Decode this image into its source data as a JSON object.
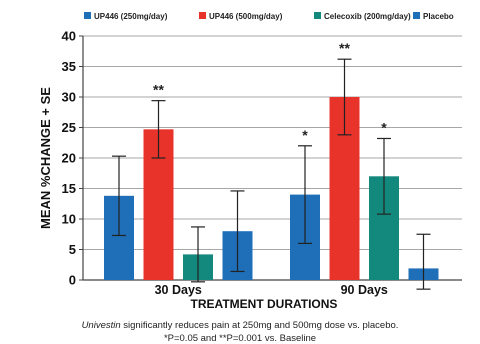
{
  "chart_data": {
    "type": "bar",
    "categories": [
      "30 Days",
      "90 Days"
    ],
    "series": [
      {
        "name": "UP446 (250mg/day)",
        "color": "#1f6fb8",
        "values": [
          13.8,
          14.0
        ],
        "errors": [
          6.5,
          8.0
        ],
        "sig": [
          "",
          "*"
        ]
      },
      {
        "name": "UP446 (500mg/day)",
        "color": "#e8332b",
        "values": [
          24.7,
          30.0
        ],
        "errors": [
          4.7,
          6.2
        ],
        "sig": [
          "**",
          "**"
        ]
      },
      {
        "name": "Celecoxib (200mg/day)",
        "color": "#13897d",
        "values": [
          4.2,
          17.0
        ],
        "errors": [
          4.5,
          6.2
        ],
        "sig": [
          "",
          "*"
        ]
      },
      {
        "name": "Placebo",
        "color": "#1f6fb8",
        "values": [
          8.0,
          1.9
        ],
        "errors": [
          6.6,
          5.6
        ],
        "sig": [
          "",
          ""
        ]
      }
    ],
    "ylabel": "MEAN %CHANGE + SE",
    "xlabel": "TREATMENT DURATIONS",
    "ylim": [
      0,
      40
    ],
    "yticks": [
      0,
      5,
      10,
      15,
      20,
      25,
      30,
      35,
      40
    ],
    "grid": true,
    "legend": "top"
  },
  "caption": {
    "line1_italic": "Univestin",
    "line1_rest": " significantly reduces pain at 250mg and 500mg dose vs. placebo.",
    "line2": "*P=0.05 and **P=0.001 vs. Baseline"
  }
}
